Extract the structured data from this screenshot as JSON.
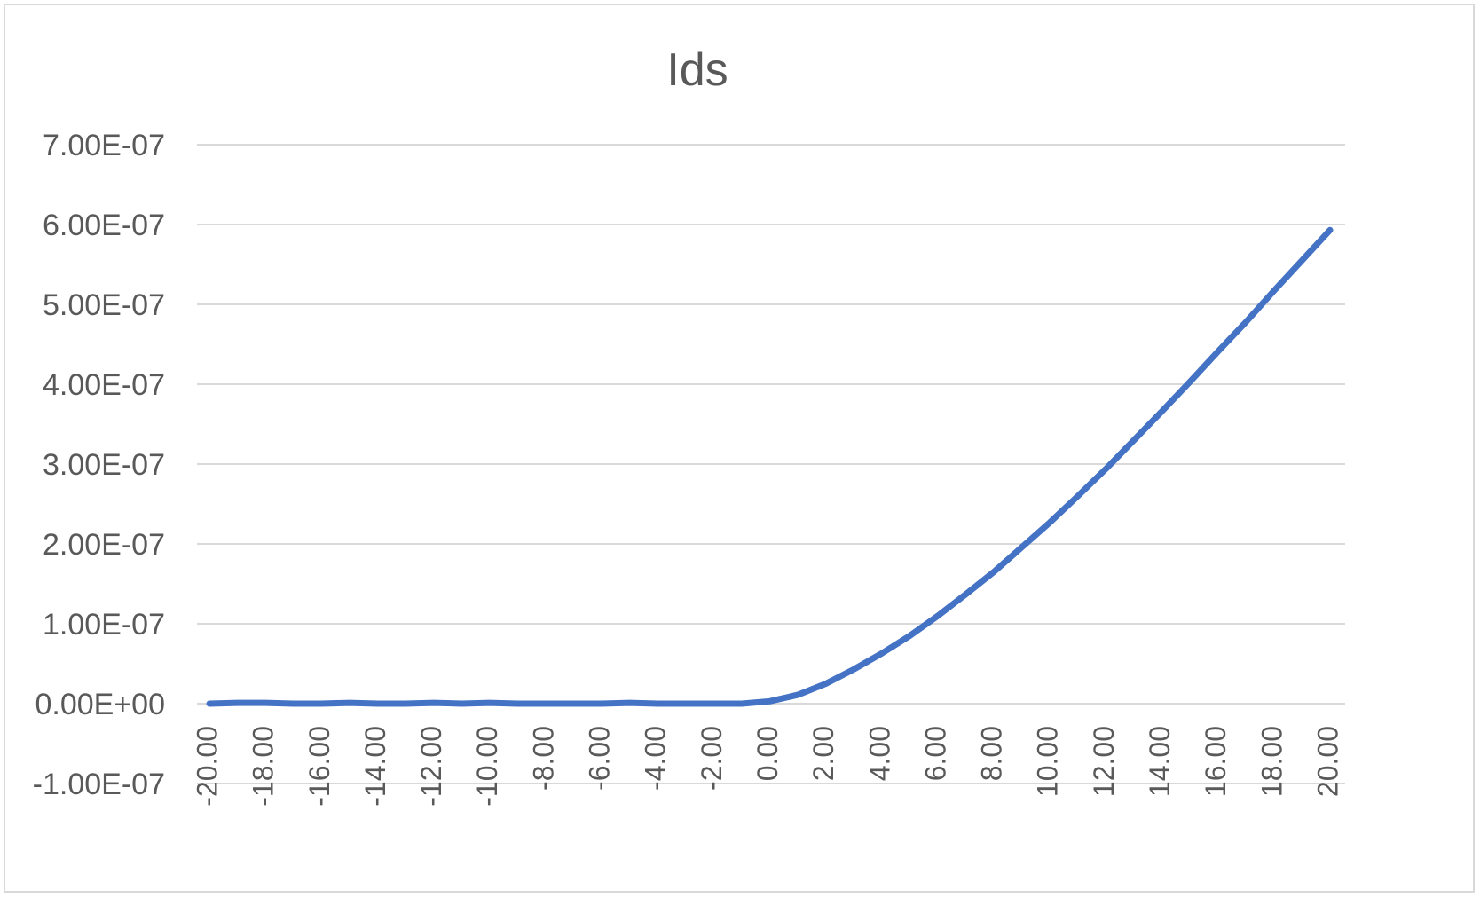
{
  "chart_data": {
    "type": "line",
    "title": "Ids",
    "xlabel": "",
    "ylabel": "",
    "x_tick_labels": [
      "-20.00",
      "-18.00",
      "-16.00",
      "-14.00",
      "-12.00",
      "-10.00",
      "-8.00",
      "-6.00",
      "-4.00",
      "-2.00",
      "0.00",
      "2.00",
      "4.00",
      "6.00",
      "8.00",
      "10.00",
      "12.00",
      "14.00",
      "16.00",
      "18.00",
      "20.00"
    ],
    "y_tick_labels": [
      "-1.00E-07",
      "0.00E+00",
      "1.00E-07",
      "2.00E-07",
      "3.00E-07",
      "4.00E-07",
      "5.00E-07",
      "6.00E-07",
      "7.00E-07"
    ],
    "ylim": [
      -1e-07,
      7e-07
    ],
    "xlim": [
      -20,
      20
    ],
    "grid": true,
    "legend": "none",
    "colors": {
      "series": "#4472c4",
      "grid": "#d9d9d9",
      "text": "#595959"
    },
    "x": [
      -20,
      -19,
      -18,
      -17,
      -16,
      -15,
      -14,
      -13,
      -12,
      -11,
      -10,
      -9,
      -8,
      -7,
      -6,
      -5,
      -4,
      -3,
      -2,
      -1,
      0,
      1,
      2,
      3,
      4,
      5,
      6,
      7,
      8,
      9,
      10,
      11,
      12,
      13,
      14,
      15,
      16,
      17,
      18,
      19,
      20
    ],
    "series": [
      {
        "values": [
          0,
          1e-09,
          1e-09,
          0,
          0,
          1e-09,
          0,
          0,
          1e-09,
          0,
          1e-09,
          0,
          0,
          0,
          0,
          1e-09,
          0,
          0,
          0,
          0,
          3e-09,
          1.1e-08,
          2.5e-08,
          4.3e-08,
          6.3e-08,
          8.5e-08,
          1.1e-07,
          1.37e-07,
          1.65e-07,
          1.96e-07,
          2.27e-07,
          2.6e-07,
          2.94e-07,
          3.3e-07,
          3.66e-07,
          4.03e-07,
          4.41e-07,
          4.78e-07,
          5.17e-07,
          5.55e-07,
          5.93e-07
        ]
      }
    ]
  }
}
